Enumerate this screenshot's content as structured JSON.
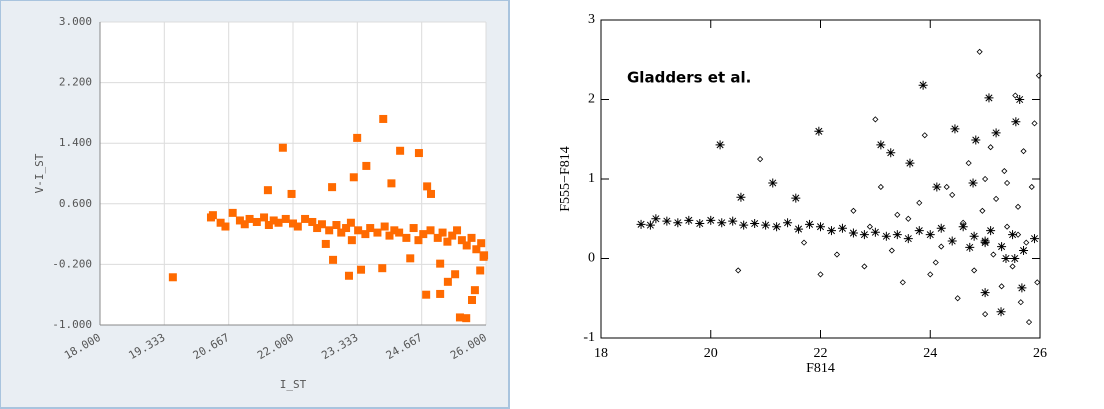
{
  "chart_data": [
    {
      "type": "scatter",
      "xlabel": "I_ST",
      "ylabel": "V-I_ST",
      "color": "#ff6a00",
      "grid": true,
      "xlim": [
        18,
        26
      ],
      "ylim": [
        -1,
        3
      ],
      "xticks": [
        {
          "value": 18,
          "label": "18.000"
        },
        {
          "value": 19.333,
          "label": "19.333"
        },
        {
          "value": 20.667,
          "label": "20.667"
        },
        {
          "value": 22,
          "label": "22.000"
        },
        {
          "value": 23.333,
          "label": "23.333"
        },
        {
          "value": 24.667,
          "label": "24.667"
        },
        {
          "value": 26,
          "label": "26.000"
        }
      ],
      "yticks": [
        {
          "value": 3,
          "label": "3.000"
        },
        {
          "value": 2.2,
          "label": "2.200"
        },
        {
          "value": 1.4,
          "label": "1.400"
        },
        {
          "value": 0.6,
          "label": "0.600"
        },
        {
          "value": -0.2,
          "label": "-0.200"
        },
        {
          "value": -1,
          "label": "-1.000"
        }
      ],
      "x": [
        19.51,
        20.34,
        21.79,
        21.48,
        21.97,
        23.33,
        23.87,
        24.22,
        24.61,
        23.52,
        23.26,
        24.04,
        24.78,
        24.86,
        22.81,
        22.68,
        22.83,
        23.22,
        23.16,
        23.41,
        23.85,
        24.43,
        24.76,
        25.05,
        25.21,
        25.46,
        25.59,
        25.71,
        25.77,
        25.88,
        25.96,
        25.05,
        25.36,
        20.3,
        20.5,
        20.6,
        20.75,
        20.9,
        21.0,
        21.1,
        21.25,
        21.4,
        21.5,
        21.6,
        21.7,
        21.85,
        22.0,
        22.1,
        22.25,
        22.4,
        22.5,
        22.6,
        22.75,
        22.9,
        23.0,
        23.1,
        23.2,
        23.35,
        23.5,
        23.6,
        23.75,
        23.9,
        24.0,
        24.1,
        24.2,
        24.35,
        24.5,
        24.6,
        24.7,
        24.85,
        25.0,
        25.1,
        25.2,
        25.3,
        25.4,
        25.5,
        25.6,
        25.7,
        25.8,
        25.9,
        25.95
      ],
      "values": [
        -0.37,
        0.45,
        1.34,
        0.78,
        0.73,
        1.47,
        1.72,
        1.3,
        1.27,
        1.1,
        0.95,
        0.87,
        0.83,
        0.73,
        0.82,
        0.07,
        -0.14,
        0.12,
        -0.35,
        -0.27,
        -0.25,
        -0.12,
        -0.6,
        -0.19,
        -0.43,
        -0.9,
        -0.91,
        -0.67,
        -0.54,
        -0.28,
        -0.08,
        -0.59,
        -0.33,
        0.42,
        0.35,
        0.3,
        0.48,
        0.38,
        0.33,
        0.4,
        0.36,
        0.42,
        0.32,
        0.38,
        0.35,
        0.4,
        0.34,
        0.3,
        0.4,
        0.36,
        0.28,
        0.33,
        0.25,
        0.32,
        0.22,
        0.28,
        0.35,
        0.25,
        0.2,
        0.28,
        0.22,
        0.3,
        0.18,
        0.25,
        0.22,
        0.15,
        0.28,
        0.12,
        0.2,
        0.25,
        0.15,
        0.22,
        0.1,
        0.18,
        0.25,
        0.12,
        0.05,
        0.15,
        0.0,
        0.08,
        -0.1
      ]
    },
    {
      "type": "scatter",
      "xlabel": "F814",
      "ylabel": "F555−F814",
      "annotation": "Gladders et al.",
      "xlim": [
        18,
        26
      ],
      "ylim": [
        -1,
        3
      ],
      "xticks": [
        18,
        20,
        22,
        24,
        26
      ],
      "yticks": [
        -1,
        0,
        1,
        2,
        3
      ],
      "series": [
        {
          "marker": "asterisk",
          "color": "#000000",
          "x": [
            18.73,
            20.17,
            20.55,
            21.13,
            21.55,
            21.97,
            23.87,
            23.63,
            24.12,
            24.45,
            24.78,
            25.07,
            24.83,
            25.2,
            25.56,
            25.63,
            23.1,
            23.28,
            25.0,
            25.29,
            25.38,
            25.54,
            25.67,
            24.72,
            25.0,
            18.9,
            19.0,
            19.2,
            19.4,
            19.6,
            19.8,
            20.0,
            20.2,
            20.4,
            20.6,
            20.8,
            21.0,
            21.2,
            21.4,
            21.6,
            21.8,
            22.0,
            22.2,
            22.4,
            22.6,
            22.8,
            23.0,
            23.2,
            23.4,
            23.6,
            23.8,
            24.0,
            24.2,
            24.4,
            24.6,
            24.8,
            25.0,
            25.1,
            25.3,
            25.5,
            25.7,
            25.9
          ],
          "values": [
            0.43,
            1.43,
            0.77,
            0.95,
            0.76,
            1.6,
            2.18,
            1.2,
            0.9,
            1.63,
            0.95,
            2.02,
            1.49,
            1.58,
            1.72,
            2.0,
            1.43,
            1.33,
            -0.43,
            -0.67,
            0.0,
            0.0,
            -0.37,
            0.14,
            0.22,
            0.42,
            0.5,
            0.47,
            0.45,
            0.48,
            0.44,
            0.48,
            0.45,
            0.47,
            0.42,
            0.44,
            0.42,
            0.4,
            0.45,
            0.37,
            0.43,
            0.4,
            0.35,
            0.38,
            0.32,
            0.3,
            0.33,
            0.28,
            0.3,
            0.25,
            0.35,
            0.3,
            0.38,
            0.22,
            0.4,
            0.28,
            0.2,
            0.35,
            0.15,
            0.3,
            0.1,
            0.25
          ]
        },
        {
          "marker": "diamond",
          "color": "#000000",
          "x": [
            20.5,
            20.9,
            21.7,
            22.0,
            22.3,
            22.6,
            22.8,
            23.0,
            23.1,
            23.3,
            23.5,
            23.6,
            23.8,
            23.9,
            24.0,
            24.2,
            24.3,
            24.5,
            24.6,
            24.7,
            24.8,
            24.9,
            24.95,
            25.0,
            25.1,
            25.15,
            25.2,
            25.3,
            25.35,
            25.4,
            25.5,
            25.55,
            25.6,
            25.65,
            25.7,
            25.75,
            25.8,
            25.85,
            25.9,
            25.95,
            25.98,
            25.4,
            24.4,
            23.4,
            22.9,
            25.0,
            24.1,
            25.6
          ],
          "values": [
            -0.15,
            1.25,
            0.2,
            -0.2,
            0.05,
            0.6,
            -0.1,
            1.75,
            0.9,
            0.1,
            -0.3,
            0.5,
            0.7,
            1.55,
            -0.2,
            0.15,
            0.9,
            -0.5,
            0.45,
            1.2,
            -0.15,
            2.6,
            0.6,
            -0.7,
            1.4,
            0.05,
            0.75,
            -0.35,
            1.1,
            0.4,
            -0.1,
            2.05,
            0.65,
            -0.55,
            1.35,
            0.2,
            -0.8,
            0.9,
            1.7,
            -0.3,
            2.3,
            0.95,
            0.8,
            0.55,
            0.4,
            1.0,
            -0.05,
            0.3
          ]
        }
      ]
    }
  ]
}
